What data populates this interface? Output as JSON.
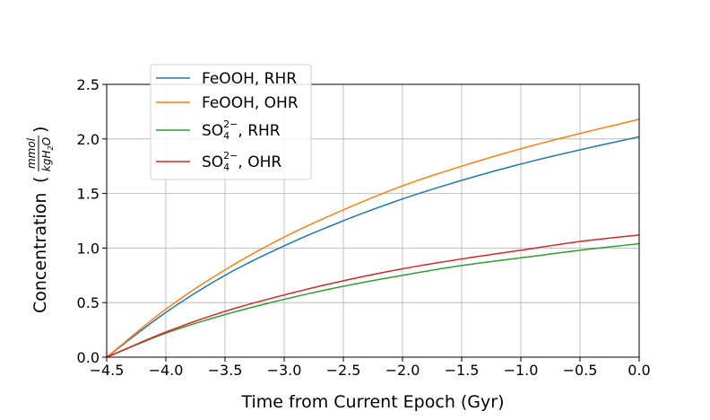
{
  "chart_data": {
    "type": "line",
    "title": "",
    "xlabel": "Time from Current Epoch (Gyr)",
    "ylabel": "Concentration",
    "ylabel_unit": {
      "numerator": "mmol",
      "denominator_base": "kgH",
      "denominator_sub": "2",
      "denominator_tail": "O"
    },
    "xlim": [
      -4.5,
      0.0
    ],
    "ylim": [
      0.0,
      2.5
    ],
    "xticks": [
      "−4.5",
      "−4.0",
      "−3.5",
      "−3.0",
      "−2.5",
      "−2.0",
      "−1.5",
      "−1.0",
      "−0.5",
      "0.0"
    ],
    "yticks": [
      "0.0",
      "0.5",
      "1.0",
      "1.5",
      "2.0",
      "2.5"
    ],
    "grid": true,
    "legend_position": "top-left",
    "x": [
      -4.5,
      -4.0,
      -3.5,
      -3.0,
      -2.5,
      -2.0,
      -1.5,
      -1.0,
      -0.5,
      0.0
    ],
    "series": [
      {
        "name": "FeOOH, RHR",
        "label_base": "FeOOH",
        "label_suffix": ", RHR",
        "color": "#1f77b4",
        "values": [
          0.0,
          0.41,
          0.75,
          1.02,
          1.25,
          1.45,
          1.62,
          1.77,
          1.9,
          2.02
        ]
      },
      {
        "name": "FeOOH, OHR",
        "label_base": "FeOOH",
        "label_suffix": ", OHR",
        "color": "#ff7f0e",
        "values": [
          0.0,
          0.44,
          0.8,
          1.1,
          1.35,
          1.57,
          1.75,
          1.91,
          2.05,
          2.18
        ]
      },
      {
        "name": "SO4 2-, RHR",
        "label_base": "SO",
        "label_sub": "4",
        "label_sup": "2−",
        "label_suffix": ", RHR",
        "color": "#2ca02c",
        "values": [
          0.0,
          0.22,
          0.39,
          0.53,
          0.65,
          0.75,
          0.84,
          0.91,
          0.98,
          1.04
        ]
      },
      {
        "name": "SO4 2-, OHR",
        "label_base": "SO",
        "label_sub": "4",
        "label_sup": "2−",
        "label_suffix": ", OHR",
        "color": "#d62728",
        "values": [
          0.0,
          0.23,
          0.42,
          0.57,
          0.7,
          0.81,
          0.9,
          0.98,
          1.06,
          1.12
        ]
      }
    ]
  }
}
